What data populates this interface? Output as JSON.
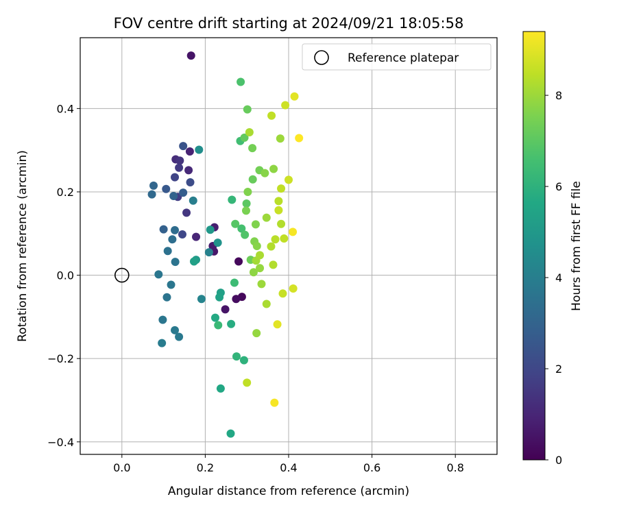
{
  "chart_data": {
    "type": "scatter",
    "title": "FOV centre drift starting at 2024/09/21 18:05:58",
    "xlabel": "Angular distance from reference (arcmin)",
    "ylabel": "Rotation from reference (arcmin)",
    "xlim": [
      -0.1,
      0.9
    ],
    "ylim": [
      -0.43,
      0.57
    ],
    "xticks": [
      0.0,
      0.2,
      0.4,
      0.6,
      0.8
    ],
    "xtick_labels": [
      "0.0",
      "0.2",
      "0.4",
      "0.6",
      "0.8"
    ],
    "yticks": [
      -0.4,
      -0.2,
      0.0,
      0.2,
      0.4
    ],
    "ytick_labels": [
      "−0.4",
      "−0.2",
      "0.0",
      "0.2",
      "0.4"
    ],
    "grid": true,
    "legend": {
      "position": "top-right",
      "entries": [
        {
          "label": "Reference platepar",
          "marker": "open-circle"
        }
      ]
    },
    "reference_point": {
      "x": 0.0,
      "y": 0.0
    },
    "colorbar": {
      "label": "Hours from first FF file",
      "colormap": "viridis",
      "range": [
        0,
        9.4
      ],
      "ticks": [
        0,
        2,
        4,
        6,
        8
      ],
      "tick_labels": [
        "0",
        "2",
        "4",
        "6",
        "8"
      ]
    },
    "point_columns": [
      "x",
      "y",
      "hours"
    ],
    "points": [
      [
        0.166,
        0.527,
        0.5
      ],
      [
        0.28,
        0.033,
        0.2
      ],
      [
        0.288,
        -0.052,
        0.2
      ],
      [
        0.274,
        -0.057,
        0.3
      ],
      [
        0.248,
        -0.082,
        0.5
      ],
      [
        0.221,
        0.057,
        0.6
      ],
      [
        0.218,
        0.07,
        0.7
      ],
      [
        0.222,
        0.115,
        0.8
      ],
      [
        0.163,
        0.297,
        0.9
      ],
      [
        0.178,
        0.092,
        1.0
      ],
      [
        0.16,
        0.252,
        1.1
      ],
      [
        0.129,
        0.278,
        1.2
      ],
      [
        0.139,
        0.275,
        1.4
      ],
      [
        0.155,
        0.15,
        1.5
      ],
      [
        0.137,
        0.258,
        1.6
      ],
      [
        0.134,
        0.188,
        1.7
      ],
      [
        0.127,
        0.235,
        1.9
      ],
      [
        0.145,
        0.098,
        2.0
      ],
      [
        0.164,
        0.223,
        2.2
      ],
      [
        0.147,
        0.31,
        2.4
      ],
      [
        0.106,
        0.207,
        2.6
      ],
      [
        0.147,
        0.198,
        2.8
      ],
      [
        0.1,
        0.11,
        2.9
      ],
      [
        0.124,
        0.19,
        3.0
      ],
      [
        0.076,
        0.215,
        3.1
      ],
      [
        0.072,
        0.194,
        3.2
      ],
      [
        0.127,
        0.108,
        3.3
      ],
      [
        0.121,
        0.086,
        3.4
      ],
      [
        0.11,
        0.058,
        3.5
      ],
      [
        0.128,
        0.032,
        3.6
      ],
      [
        0.108,
        -0.053,
        3.6
      ],
      [
        0.118,
        -0.023,
        3.7
      ],
      [
        0.088,
        0.002,
        3.7
      ],
      [
        0.098,
        -0.107,
        3.7
      ],
      [
        0.137,
        -0.148,
        3.8
      ],
      [
        0.127,
        -0.132,
        3.8
      ],
      [
        0.096,
        -0.163,
        3.9
      ],
      [
        0.171,
        0.179,
        4.0
      ],
      [
        0.209,
        0.055,
        4.1
      ],
      [
        0.191,
        -0.057,
        4.2
      ],
      [
        0.185,
        0.301,
        4.6
      ],
      [
        0.23,
        0.078,
        4.8
      ],
      [
        0.212,
        0.109,
        5.0
      ],
      [
        0.178,
        0.037,
        5.1
      ],
      [
        0.237,
        -0.042,
        5.3
      ],
      [
        0.173,
        0.033,
        5.3
      ],
      [
        0.234,
        -0.053,
        5.4
      ],
      [
        0.237,
        -0.272,
        5.6
      ],
      [
        0.261,
        -0.38,
        5.6
      ],
      [
        0.224,
        -0.102,
        5.7
      ],
      [
        0.262,
        -0.117,
        5.8
      ],
      [
        0.293,
        -0.204,
        6.0
      ],
      [
        0.275,
        -0.195,
        6.1
      ],
      [
        0.264,
        0.181,
        6.2
      ],
      [
        0.231,
        -0.12,
        6.3
      ],
      [
        0.27,
        -0.018,
        6.4
      ],
      [
        0.284,
        0.322,
        6.5
      ],
      [
        0.287,
        0.112,
        6.6
      ],
      [
        0.285,
        0.464,
        6.7
      ],
      [
        0.295,
        0.097,
        6.8
      ],
      [
        0.272,
        0.123,
        6.9
      ],
      [
        0.299,
        0.172,
        7.0
      ],
      [
        0.294,
        0.33,
        7.1
      ],
      [
        0.301,
        0.398,
        7.2
      ],
      [
        0.314,
        0.23,
        7.2
      ],
      [
        0.309,
        0.037,
        7.3
      ],
      [
        0.33,
        0.252,
        7.4
      ],
      [
        0.313,
        0.305,
        7.4
      ],
      [
        0.298,
        0.155,
        7.5
      ],
      [
        0.318,
        0.081,
        7.6
      ],
      [
        0.321,
        0.122,
        7.6
      ],
      [
        0.302,
        0.2,
        7.6
      ],
      [
        0.324,
        0.07,
        7.7
      ],
      [
        0.343,
        0.245,
        7.7
      ],
      [
        0.316,
        0.007,
        7.8
      ],
      [
        0.364,
        0.255,
        7.8
      ],
      [
        0.331,
        0.017,
        7.9
      ],
      [
        0.323,
        -0.139,
        7.9
      ],
      [
        0.335,
        -0.021,
        8.0
      ],
      [
        0.347,
        0.138,
        8.0
      ],
      [
        0.38,
        0.328,
        8.0
      ],
      [
        0.322,
        0.035,
        8.1
      ],
      [
        0.331,
        0.048,
        8.2
      ],
      [
        0.306,
        0.343,
        8.2
      ],
      [
        0.347,
        -0.069,
        8.2
      ],
      [
        0.358,
        0.069,
        8.3
      ],
      [
        0.363,
        0.025,
        8.3
      ],
      [
        0.382,
        0.123,
        8.3
      ],
      [
        0.368,
        0.086,
        8.4
      ],
      [
        0.376,
        0.178,
        8.4
      ],
      [
        0.3,
        -0.258,
        8.5
      ],
      [
        0.359,
        0.383,
        8.5
      ],
      [
        0.382,
        0.208,
        8.5
      ],
      [
        0.389,
        0.088,
        8.5
      ],
      [
        0.376,
        0.156,
        8.6
      ],
      [
        0.386,
        -0.044,
        8.6
      ],
      [
        0.4,
        0.229,
        8.7
      ],
      [
        0.392,
        0.408,
        8.7
      ],
      [
        0.411,
        -0.032,
        8.8
      ],
      [
        0.373,
        -0.118,
        9.0
      ],
      [
        0.414,
        0.429,
        9.0
      ],
      [
        0.366,
        -0.306,
        9.3
      ],
      [
        0.41,
        0.104,
        9.3
      ],
      [
        0.425,
        0.329,
        9.4
      ]
    ]
  }
}
